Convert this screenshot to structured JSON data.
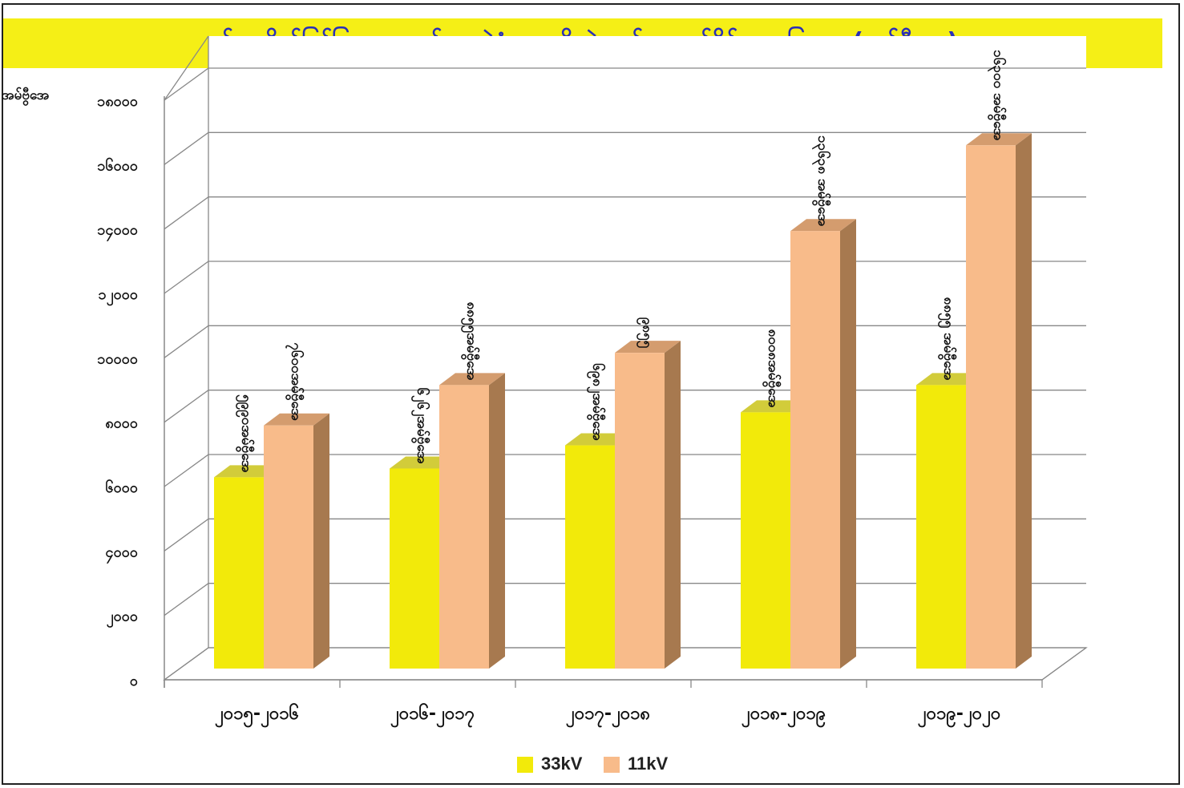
{
  "chart_data": {
    "type": "bar",
    "title": "နှစ်အလိုက်ဖြန့်ဖြူးရေးဓာတ်အားခွဲရုံများ တိုးချဲ့တည်ဆောက်နိုင်မှုအခြေအနေ(အမ်ဗွီအေ)",
    "ylabel": "အမ်ဗွီအေ",
    "xlabel": "",
    "ylim": [
      0,
      18000
    ],
    "yticks": [
      0,
      2000,
      4000,
      6000,
      8000,
      10000,
      12000,
      14000,
      16000,
      18000
    ],
    "ytick_labels": [
      "၀",
      "၂၀၀၀",
      "၄၀၀၀",
      "၆၀၀၀",
      "၈၀၀၀",
      "၁၀၀၀၀",
      "၁၂၀၀၀",
      "၁၄၀၀၀",
      "၁၆၀၀၀",
      "၁၈၀၀၀"
    ],
    "categories": [
      "၂၀၁၅-၂၀၁၆",
      "၂၀၁၆-၂၀၁၇",
      "၂၀၁၇-၂၀၁၈",
      "၂၀၁၈-၂၀၁၉",
      "၂၀၁၉-၂၀၂၀"
    ],
    "grid": true,
    "legend_position": "bottom",
    "series": [
      {
        "name": "33kV",
        "color": "#f2ea0a",
        "values": [
          5990,
          6262,
          6982,
          8008,
          8855
        ],
        "labels": [
          "၅၉၉၀အမ်ဗွီအေ",
          "၆၂၆၂အမ်ဗွီအေ",
          "၆၉၈၂အမ်ဗွီအေ",
          "၈၀၀၈အမ်ဗွီအေ",
          "၈၈၅၅ အမ်ဗွီအေ"
        ]
      },
      {
        "name": "11kV",
        "color": "#f8bb8a",
        "values": [
          7600,
          8855,
          9855,
          13638,
          16300
        ],
        "labels": [
          "၇၆၀၀အမ်ဗွီအေ",
          "၈၈၅၅အမ်ဗွီအေ",
          "၉၈၅၅",
          "၁၃၆၃၈ အမ်ဗွီအေ",
          "၁၆၃၀၀ အမ်ဗွီအေ"
        ]
      }
    ]
  }
}
